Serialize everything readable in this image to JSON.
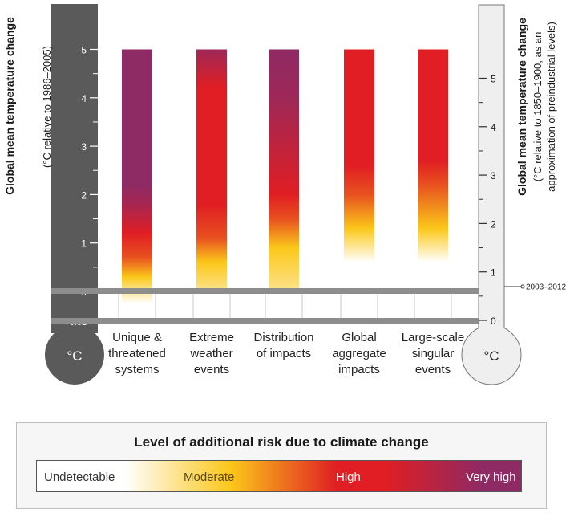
{
  "chart_data": {
    "type": "bar",
    "left_axis": {
      "label_line1": "Global mean temperature change",
      "label_line2": "(°C relative to 1986–2005)",
      "ticks": [
        -0.61,
        0,
        1,
        2,
        3,
        4,
        5
      ],
      "tick_labels": [
        "-0.61",
        "0",
        "1",
        "2",
        "3",
        "4",
        "5"
      ],
      "bulb_label": "°C"
    },
    "right_axis": {
      "label_line1": "Global mean temperature change",
      "label_line2": "(°C relative to 1850–1900, as an",
      "label_line3": "approximation of preindustrial levels)",
      "ticks": [
        0,
        1,
        2,
        3,
        4,
        5
      ],
      "tick_labels": [
        "0",
        "1",
        "2",
        "3",
        "4",
        "5"
      ],
      "bulb_label": "°C",
      "marker": {
        "label": "2003–2012",
        "value": 0.78
      }
    },
    "ylim": [
      -0.61,
      5
    ],
    "categories": [
      {
        "lines": [
          "Unique &",
          "threatened",
          "systems"
        ]
      },
      {
        "lines": [
          "Extreme",
          "weather",
          "events"
        ]
      },
      {
        "lines": [
          "Distribution",
          "of impacts"
        ]
      },
      {
        "lines": [
          "Global",
          "aggregate",
          "impacts"
        ]
      },
      {
        "lines": [
          "Large-scale",
          "singular",
          "events"
        ]
      }
    ],
    "bars": [
      {
        "min": -0.25,
        "max": 5,
        "stops": [
          {
            "t": -0.25,
            "level": 0
          },
          {
            "t": 0.3,
            "level": 1
          },
          {
            "t": 0.7,
            "level": 1.7
          },
          {
            "t": 1.2,
            "level": 2
          },
          {
            "t": 1.8,
            "level": 2.7
          },
          {
            "t": 2.2,
            "level": 3
          },
          {
            "t": 5,
            "level": 3
          }
        ]
      },
      {
        "min": 0,
        "max": 5,
        "stops": [
          {
            "t": 0,
            "level": 0.5
          },
          {
            "t": 0.6,
            "level": 1
          },
          {
            "t": 1.1,
            "level": 1.7
          },
          {
            "t": 1.8,
            "level": 2
          },
          {
            "t": 4.2,
            "level": 2
          },
          {
            "t": 4.8,
            "level": 2.6
          },
          {
            "t": 5,
            "level": 2.8
          }
        ]
      },
      {
        "min": 0,
        "max": 5,
        "stops": [
          {
            "t": 0,
            "level": 0.5
          },
          {
            "t": 0.9,
            "level": 1
          },
          {
            "t": 1.5,
            "level": 1.7
          },
          {
            "t": 2.0,
            "level": 2
          },
          {
            "t": 3.0,
            "level": 2.4
          },
          {
            "t": 4.0,
            "level": 2.8
          },
          {
            "t": 5,
            "level": 3
          }
        ]
      },
      {
        "min": 0.6,
        "max": 5,
        "stops": [
          {
            "t": 0.6,
            "level": 0
          },
          {
            "t": 1.3,
            "level": 1
          },
          {
            "t": 2.0,
            "level": 1.7
          },
          {
            "t": 2.6,
            "level": 2
          },
          {
            "t": 5,
            "level": 2
          }
        ]
      },
      {
        "min": 0.6,
        "max": 5,
        "stops": [
          {
            "t": 0.6,
            "level": 0
          },
          {
            "t": 1.3,
            "level": 1
          },
          {
            "t": 2.2,
            "level": 1.7
          },
          {
            "t": 2.7,
            "level": 2
          },
          {
            "t": 5,
            "level": 2
          }
        ]
      }
    ],
    "colors": {
      "undetectable": "#ffffff",
      "moderate": "#fbc71a",
      "high": "#e01e23",
      "very_high": "#8e2a64",
      "thermo_dark": "#5a5a5a",
      "thermo_light": "#efefef"
    }
  },
  "legend": {
    "title": "Level of additional risk due to climate change",
    "labels": [
      "Undetectable",
      "Moderate",
      "High",
      "Very high"
    ]
  }
}
